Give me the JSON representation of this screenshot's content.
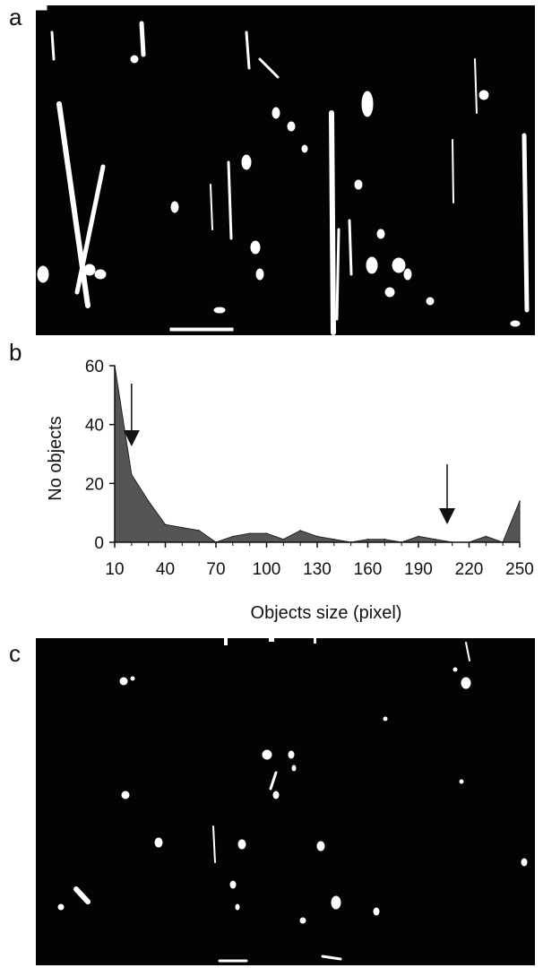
{
  "panels": {
    "a": {
      "label": "a",
      "image": "binary microscopy image with many bright elongated streaks"
    },
    "b": {
      "label": "b"
    },
    "c": {
      "label": "c",
      "image": "binary microscopy image after size filtering, small sparse bright spots"
    }
  },
  "chart_data": {
    "type": "area",
    "xlabel": "Objects size (pixel)",
    "ylabel": "No objects",
    "xlim": [
      10,
      250
    ],
    "ylim": [
      0,
      60
    ],
    "x_ticks": [
      10,
      40,
      70,
      100,
      130,
      160,
      190,
      220,
      250
    ],
    "y_ticks": [
      0,
      20,
      40,
      60
    ],
    "series": [
      {
        "x": [
          10,
          20,
          30,
          40,
          50,
          60,
          70,
          80,
          90,
          100,
          110,
          120,
          130,
          140,
          150,
          160,
          170,
          180,
          190,
          200,
          210,
          220,
          230,
          240,
          250
        ],
        "y": [
          60,
          23,
          14,
          6,
          5,
          4,
          0,
          2,
          3,
          3,
          1,
          4,
          2,
          1,
          0,
          1,
          1,
          0,
          2,
          1,
          0,
          0,
          2,
          0,
          14
        ]
      }
    ],
    "annotations": [
      {
        "type": "arrow",
        "x": 20,
        "direction": "down"
      },
      {
        "type": "arrow",
        "x": 207,
        "direction": "down"
      }
    ],
    "grid": false,
    "fill_color": "#555555"
  }
}
